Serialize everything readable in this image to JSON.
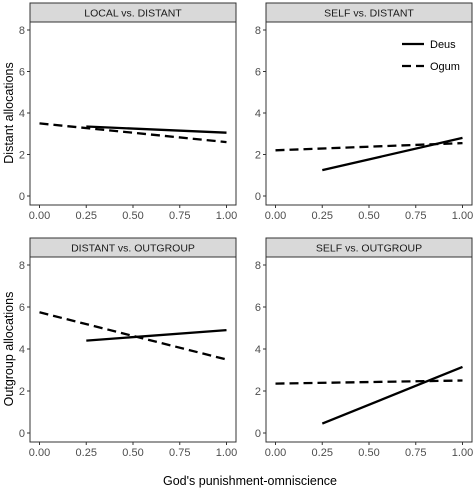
{
  "figure": {
    "xlabel": "God's punishment-omniscience",
    "row_ylabels": [
      "Distant allocations",
      "Outgroup allocations"
    ],
    "legend": {
      "placement": "inside top-right of SELF vs. DISTANT panel",
      "entries": [
        {
          "label": "Deus",
          "linestyle": "solid"
        },
        {
          "label": "Ogum",
          "linestyle": "dashed"
        }
      ]
    },
    "colors": {
      "strip_fill": "#d9d9d9",
      "panel_border": "#333333",
      "line": "#000000",
      "tick_text": "#4d4d4d"
    }
  },
  "chart_data": [
    {
      "type": "line",
      "title": "LOCAL vs. DISTANT",
      "xlabel": "God's punishment-omniscience",
      "ylabel": "Distant allocations",
      "xlim": [
        0,
        1
      ],
      "ylim": [
        0,
        8
      ],
      "x_ticks": [
        "0.00",
        "0.25",
        "0.50",
        "0.75",
        "1.00"
      ],
      "y_ticks": [
        "0",
        "2",
        "4",
        "6",
        "8"
      ],
      "grid": false,
      "series": [
        {
          "name": "Deus",
          "linestyle": "solid",
          "x": [
            0.25,
            1.0
          ],
          "y": [
            3.35,
            3.05
          ]
        },
        {
          "name": "Ogum",
          "linestyle": "dashed",
          "x": [
            0.0,
            1.0
          ],
          "y": [
            3.5,
            2.6
          ]
        }
      ]
    },
    {
      "type": "line",
      "title": "SELF vs. DISTANT",
      "xlabel": "God's punishment-omniscience",
      "ylabel": "Distant allocations",
      "xlim": [
        0,
        1
      ],
      "ylim": [
        0,
        8
      ],
      "x_ticks": [
        "0.00",
        "0.25",
        "0.50",
        "0.75",
        "1.00"
      ],
      "y_ticks": [
        "0",
        "2",
        "4",
        "6",
        "8"
      ],
      "grid": false,
      "series": [
        {
          "name": "Deus",
          "linestyle": "solid",
          "x": [
            0.25,
            1.0
          ],
          "y": [
            1.25,
            2.8
          ]
        },
        {
          "name": "Ogum",
          "linestyle": "dashed",
          "x": [
            0.0,
            1.0
          ],
          "y": [
            2.2,
            2.55
          ]
        }
      ]
    },
    {
      "type": "line",
      "title": "DISTANT vs. OUTGROUP",
      "xlabel": "God's punishment-omniscience",
      "ylabel": "Outgroup allocations",
      "xlim": [
        0,
        1
      ],
      "ylim": [
        0,
        8
      ],
      "x_ticks": [
        "0.00",
        "0.25",
        "0.50",
        "0.75",
        "1.00"
      ],
      "y_ticks": [
        "0",
        "2",
        "4",
        "6",
        "8"
      ],
      "grid": false,
      "series": [
        {
          "name": "Deus",
          "linestyle": "solid",
          "x": [
            0.25,
            1.0
          ],
          "y": [
            4.4,
            4.9
          ]
        },
        {
          "name": "Ogum",
          "linestyle": "dashed",
          "x": [
            0.0,
            1.0
          ],
          "y": [
            5.75,
            3.5
          ]
        }
      ]
    },
    {
      "type": "line",
      "title": "SELF vs. OUTGROUP",
      "xlabel": "God's punishment-omniscience",
      "ylabel": "Outgroup allocations",
      "xlim": [
        0,
        1
      ],
      "ylim": [
        0,
        8
      ],
      "x_ticks": [
        "0.00",
        "0.25",
        "0.50",
        "0.75",
        "1.00"
      ],
      "y_ticks": [
        "0",
        "2",
        "4",
        "6",
        "8"
      ],
      "grid": false,
      "series": [
        {
          "name": "Deus",
          "linestyle": "solid",
          "x": [
            0.25,
            1.0
          ],
          "y": [
            0.45,
            3.15
          ]
        },
        {
          "name": "Ogum",
          "linestyle": "dashed",
          "x": [
            0.0,
            1.0
          ],
          "y": [
            2.35,
            2.5
          ]
        }
      ]
    }
  ]
}
